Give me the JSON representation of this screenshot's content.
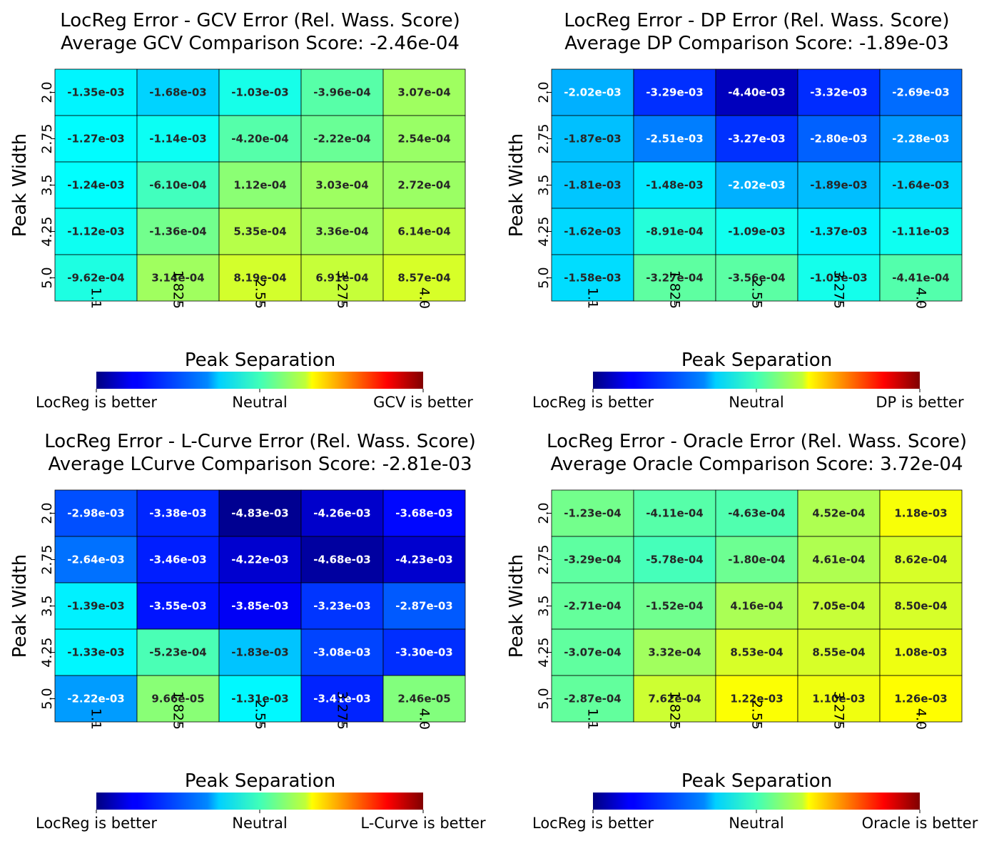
{
  "chart_data": [
    {
      "type": "heatmap",
      "title_line1": "LocReg Error - GCV Error (Rel. Wass. Score)",
      "title_line2": "Average GCV Comparison Score: -2.46e-04",
      "xlabel": "Peak Separation",
      "ylabel": "Peak Width",
      "x_ticks": [
        "1.1",
        "1.825",
        "2.55",
        "3.275",
        "4.0"
      ],
      "y_ticks": [
        "2.0",
        "2.75",
        "3.5",
        "4.25",
        "5.0"
      ],
      "values": [
        [
          -0.00135,
          -0.00168,
          -0.00103,
          -0.000396,
          0.000307
        ],
        [
          -0.00127,
          -0.00114,
          -0.00042,
          -0.000222,
          0.000254
        ],
        [
          -0.00124,
          -0.00061,
          0.000112,
          0.000303,
          0.000272
        ],
        [
          -0.00112,
          -0.000136,
          0.000535,
          0.000336,
          0.000614
        ],
        [
          -0.000962,
          0.000314,
          0.000819,
          0.000691,
          0.000857
        ]
      ],
      "labels": [
        [
          "-1.35e-03",
          "-1.68e-03",
          "-1.03e-03",
          "-3.96e-04",
          "3.07e-04"
        ],
        [
          "-1.27e-03",
          "-1.14e-03",
          "-4.20e-04",
          "-2.22e-04",
          "2.54e-04"
        ],
        [
          "-1.24e-03",
          "-6.10e-04",
          "1.12e-04",
          "3.03e-04",
          "2.72e-04"
        ],
        [
          "-1.12e-03",
          "-1.36e-04",
          "5.35e-04",
          "3.36e-04",
          "6.14e-04"
        ],
        [
          "-9.62e-04",
          "3.14e-04",
          "8.19e-04",
          "6.91e-04",
          "8.57e-04"
        ]
      ],
      "colormap": "jet",
      "vlim": [
        -0.005,
        0.005
      ],
      "colorbar_labels": [
        "LocReg is better",
        "Neutral",
        "GCV is better"
      ]
    },
    {
      "type": "heatmap",
      "title_line1": "LocReg Error - DP Error (Rel. Wass. Score)",
      "title_line2": "Average DP Comparison Score: -1.89e-03",
      "xlabel": "Peak Separation",
      "ylabel": "Peak Width",
      "x_ticks": [
        "1.1",
        "1.825",
        "2.55",
        "3.275",
        "4.0"
      ],
      "y_ticks": [
        "2.0",
        "2.75",
        "3.5",
        "4.25",
        "5.0"
      ],
      "values": [
        [
          -0.00202,
          -0.00329,
          -0.0044,
          -0.00332,
          -0.00269
        ],
        [
          -0.00187,
          -0.00251,
          -0.00327,
          -0.0028,
          -0.00228
        ],
        [
          -0.00181,
          -0.00148,
          -0.00202,
          -0.00189,
          -0.00164
        ],
        [
          -0.00162,
          -0.000891,
          -0.00109,
          -0.00137,
          -0.00111
        ],
        [
          -0.00158,
          -0.000327,
          -0.000356,
          -0.00105,
          -0.000441
        ]
      ],
      "labels": [
        [
          "-2.02e-03",
          "-3.29e-03",
          "-4.40e-03",
          "-3.32e-03",
          "-2.69e-03"
        ],
        [
          "-1.87e-03",
          "-2.51e-03",
          "-3.27e-03",
          "-2.80e-03",
          "-2.28e-03"
        ],
        [
          "-1.81e-03",
          "-1.48e-03",
          "-2.02e-03",
          "-1.89e-03",
          "-1.64e-03"
        ],
        [
          "-1.62e-03",
          "-8.91e-04",
          "-1.09e-03",
          "-1.37e-03",
          "-1.11e-03"
        ],
        [
          "-1.58e-03",
          "-3.27e-04",
          "-3.56e-04",
          "-1.05e-03",
          "-4.41e-04"
        ]
      ],
      "colormap": "jet",
      "vlim": [
        -0.005,
        0.005
      ],
      "colorbar_labels": [
        "LocReg is better",
        "Neutral",
        "DP is better"
      ]
    },
    {
      "type": "heatmap",
      "title_line1": "LocReg Error - L-Curve Error (Rel. Wass. Score)",
      "title_line2": "Average LCurve Comparison Score: -2.81e-03",
      "xlabel": "Peak Separation",
      "ylabel": "Peak Width",
      "x_ticks": [
        "1.1",
        "1.825",
        "2.55",
        "3.275",
        "4.0"
      ],
      "y_ticks": [
        "2.0",
        "2.75",
        "3.5",
        "4.25",
        "5.0"
      ],
      "values": [
        [
          -0.00298,
          -0.00338,
          -0.00483,
          -0.00426,
          -0.00368
        ],
        [
          -0.00264,
          -0.00346,
          -0.00422,
          -0.00468,
          -0.00423
        ],
        [
          -0.00139,
          -0.00355,
          -0.00385,
          -0.00323,
          -0.00287
        ],
        [
          -0.00133,
          -0.000523,
          -0.00183,
          -0.00308,
          -0.0033
        ],
        [
          -0.00222,
          9.66e-05,
          -0.00131,
          -0.00341,
          2.46e-05
        ]
      ],
      "labels": [
        [
          "-2.98e-03",
          "-3.38e-03",
          "-4.83e-03",
          "-4.26e-03",
          "-3.68e-03"
        ],
        [
          "-2.64e-03",
          "-3.46e-03",
          "-4.22e-03",
          "-4.68e-03",
          "-4.23e-03"
        ],
        [
          "-1.39e-03",
          "-3.55e-03",
          "-3.85e-03",
          "-3.23e-03",
          "-2.87e-03"
        ],
        [
          "-1.33e-03",
          "-5.23e-04",
          "-1.83e-03",
          "-3.08e-03",
          "-3.30e-03"
        ],
        [
          "-2.22e-03",
          "9.66e-05",
          "-1.31e-03",
          "-3.41e-03",
          "2.46e-05"
        ]
      ],
      "colormap": "jet",
      "vlim": [
        -0.005,
        0.005
      ],
      "colorbar_labels": [
        "LocReg is better",
        "Neutral",
        "L-Curve is better"
      ]
    },
    {
      "type": "heatmap",
      "title_line1": "LocReg Error - Oracle Error (Rel. Wass. Score)",
      "title_line2": "Average Oracle Comparison Score: 3.72e-04",
      "xlabel": "Peak Separation",
      "ylabel": "Peak Width",
      "x_ticks": [
        "1.1",
        "1.825",
        "2.55",
        "3.275",
        "4.0"
      ],
      "y_ticks": [
        "2.0",
        "2.75",
        "3.5",
        "4.25",
        "5.0"
      ],
      "values": [
        [
          -0.000123,
          -0.000411,
          -0.000463,
          0.000452,
          0.00118
        ],
        [
          -0.000329,
          -0.000578,
          -0.00018,
          0.000461,
          0.000862
        ],
        [
          -0.000271,
          -0.000152,
          0.000416,
          0.000705,
          0.00085
        ],
        [
          -0.000307,
          0.000332,
          0.000853,
          0.000855,
          0.00108
        ],
        [
          -0.000287,
          0.000762,
          0.00122,
          0.0011,
          0.00126
        ]
      ],
      "labels": [
        [
          "-1.23e-04",
          "-4.11e-04",
          "-4.63e-04",
          "4.52e-04",
          "1.18e-03"
        ],
        [
          "-3.29e-04",
          "-5.78e-04",
          "-1.80e-04",
          "4.61e-04",
          "8.62e-04"
        ],
        [
          "-2.71e-04",
          "-1.52e-04",
          "4.16e-04",
          "7.05e-04",
          "8.50e-04"
        ],
        [
          "-3.07e-04",
          "3.32e-04",
          "8.53e-04",
          "8.55e-04",
          "1.08e-03"
        ],
        [
          "-2.87e-04",
          "7.62e-04",
          "1.22e-03",
          "1.10e-03",
          "1.26e-03"
        ]
      ],
      "colormap": "jet",
      "vlim": [
        -0.005,
        0.005
      ],
      "colorbar_labels": [
        "LocReg is better",
        "Neutral",
        "Oracle is better"
      ]
    }
  ]
}
